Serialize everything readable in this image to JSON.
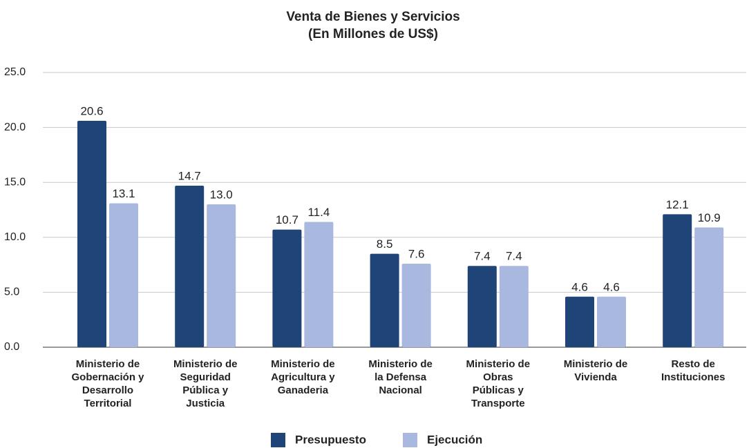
{
  "chart_data": {
    "type": "bar",
    "title": "Venta de Bienes y Servicios",
    "subtitle": "(En Millones de US$)",
    "categories": [
      [
        "Ministerio de",
        "Gobernación y",
        "Desarrollo",
        "Territorial"
      ],
      [
        "Ministerio de",
        "Seguridad",
        "Pública y",
        "Justicia"
      ],
      [
        "Ministerio de",
        "Agricultura y",
        "Ganaderia"
      ],
      [
        "Ministerio de",
        "la Defensa",
        "Nacional"
      ],
      [
        "Ministerio de",
        "Obras",
        "Públicas y",
        "Transporte"
      ],
      [
        "Ministerio de",
        "Vivienda"
      ],
      [
        "Resto de",
        "Instituciones"
      ]
    ],
    "series": [
      {
        "name": "Presupuesto",
        "color": "#1f4477",
        "values": [
          20.6,
          14.7,
          10.7,
          8.5,
          7.4,
          4.6,
          12.1
        ],
        "value_labels": [
          "20.6",
          "14.7",
          "10.7",
          "8.5",
          "7.4",
          "4.6",
          "12.1"
        ]
      },
      {
        "name": "Ejecución",
        "color": "#a9b8de",
        "values": [
          13.1,
          13.0,
          11.4,
          7.6,
          7.4,
          4.6,
          10.9
        ],
        "value_labels": [
          "13.1",
          "13.0",
          "11.4",
          "7.6",
          "7.4",
          "4.6",
          "10.9"
        ]
      }
    ],
    "ylim": [
      0,
      25
    ],
    "yticks": [
      {
        "value": 0,
        "label": "0.0"
      },
      {
        "value": 5,
        "label": "5.0"
      },
      {
        "value": 10,
        "label": "10.0"
      },
      {
        "value": 15,
        "label": "15.0"
      },
      {
        "value": 20,
        "label": "20.0"
      },
      {
        "value": 25,
        "label": "25.0"
      }
    ],
    "grid": true,
    "legend": "bottom"
  }
}
